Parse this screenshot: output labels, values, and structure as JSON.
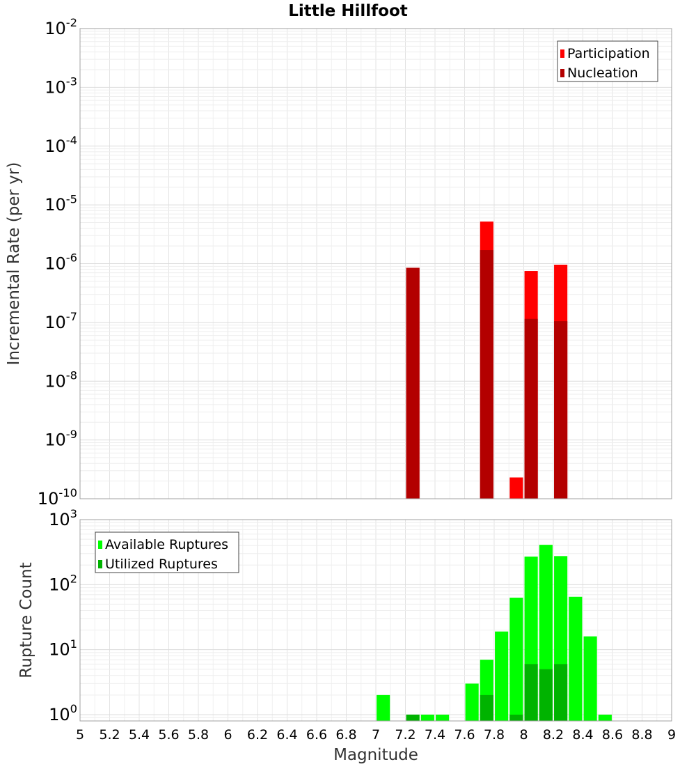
{
  "chart_data": [
    {
      "type": "bar",
      "title": "Little Hillfoot",
      "xlabel": "",
      "ylabel": "Incremental Rate (per yr)",
      "y_scale": "log",
      "ylim": [
        1e-10,
        0.01
      ],
      "xlim": [
        5,
        9
      ],
      "bar_width": 0.09,
      "y_tick_labels": [
        {
          "base": "10",
          "exp": "-10",
          "value": 1e-10
        },
        {
          "base": "10",
          "exp": "-9",
          "value": 1e-09
        },
        {
          "base": "10",
          "exp": "-8",
          "value": 1e-08
        },
        {
          "base": "10",
          "exp": "-7",
          "value": 1e-07
        },
        {
          "base": "10",
          "exp": "-6",
          "value": 1e-06
        },
        {
          "base": "10",
          "exp": "-5",
          "value": 1e-05
        },
        {
          "base": "10",
          "exp": "-4",
          "value": 0.0001
        },
        {
          "base": "10",
          "exp": "-3",
          "value": 0.001
        },
        {
          "base": "10",
          "exp": "-2",
          "value": 0.01
        }
      ],
      "grid": true,
      "legend_position": "top-right",
      "series": [
        {
          "name": "Participation",
          "color": "#ff0000",
          "x": [
            7.25,
            7.75,
            7.95,
            8.05,
            8.25
          ],
          "values": [
            8.5e-07,
            5.2e-06,
            2.3e-10,
            7.5e-07,
            9.6e-07
          ]
        },
        {
          "name": "Nucleation",
          "color": "#b30000",
          "x": [
            7.25,
            7.75,
            8.05,
            8.25
          ],
          "values": [
            8.5e-07,
            1.7e-06,
            1.15e-07,
            1.05e-07
          ]
        }
      ]
    },
    {
      "type": "bar",
      "xlabel": "Magnitude",
      "ylabel": "Rupture Count",
      "y_scale": "log",
      "ylim": [
        0.8,
        1000
      ],
      "xlim": [
        5,
        9
      ],
      "bar_width": 0.09,
      "x_tick_labels": [
        "5",
        "5.2",
        "5.4",
        "5.6",
        "5.8",
        "6",
        "6.2",
        "6.4",
        "6.6",
        "6.8",
        "7",
        "7.2",
        "7.4",
        "7.6",
        "7.8",
        "8",
        "8.2",
        "8.4",
        "8.6",
        "8.8",
        "9"
      ],
      "y_tick_labels": [
        {
          "base": "10",
          "exp": "0",
          "value": 1
        },
        {
          "base": "10",
          "exp": "1",
          "value": 10
        },
        {
          "base": "10",
          "exp": "2",
          "value": 100
        },
        {
          "base": "10",
          "exp": "3",
          "value": 1000
        }
      ],
      "grid": true,
      "legend_position": "top-left",
      "series": [
        {
          "name": "Available Ruptures",
          "color": "#00ff00",
          "x": [
            7.05,
            7.25,
            7.35,
            7.45,
            7.65,
            7.75,
            7.85,
            7.95,
            8.05,
            8.15,
            8.25,
            8.35,
            8.45,
            8.55
          ],
          "values": [
            2,
            1,
            1,
            1,
            3,
            7,
            19,
            63,
            270,
            410,
            275,
            65,
            16,
            1
          ]
        },
        {
          "name": "Utilized Ruptures",
          "color": "#00b300",
          "x": [
            7.25,
            7.75,
            7.95,
            8.05,
            8.15,
            8.25
          ],
          "values": [
            1,
            2,
            1,
            6,
            5,
            6
          ]
        }
      ]
    }
  ]
}
